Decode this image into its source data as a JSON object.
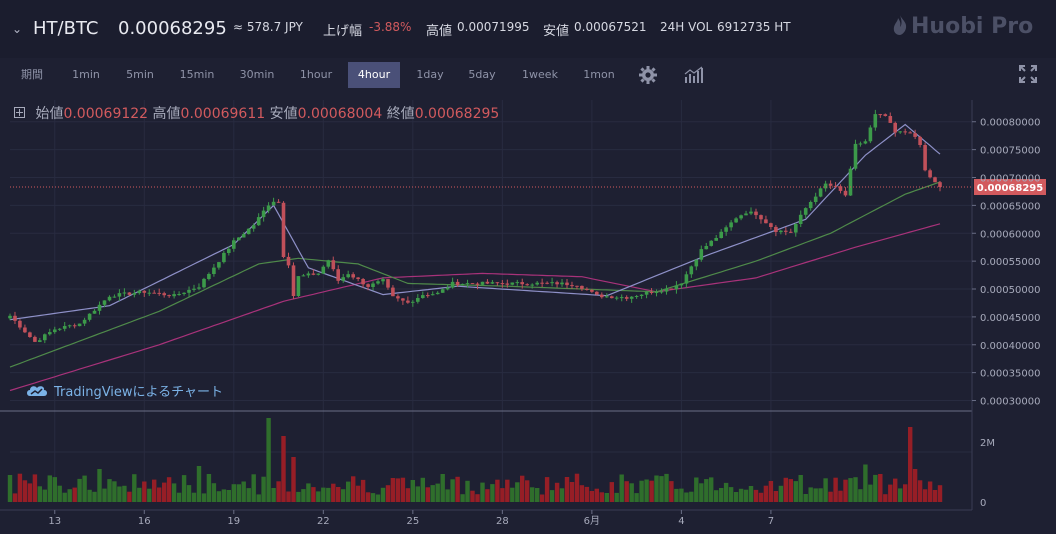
{
  "header": {
    "chevron": "⌄",
    "pair": "HT/BTC",
    "price": "0.00068295",
    "jpy": "≈ 578.7 JPY",
    "change_label": "上げ幅",
    "change_value": "-3.88%",
    "high_label": "高値",
    "high_value": "0.00071995",
    "low_label": "安値",
    "low_value": "0.00067521",
    "vol_label": "24H VOL",
    "vol_value": "6912735 HT",
    "logo": "Huobi Pro"
  },
  "timeframes": {
    "period_label": "期間",
    "items": [
      "1min",
      "5min",
      "15min",
      "30min",
      "1hour",
      "4hour",
      "1day",
      "5day",
      "1week",
      "1mon"
    ],
    "active": "4hour",
    "settings_icon": "gear-icon",
    "indicators_icon": "bar-chart-icon",
    "fullscreen_icon": "expand-icon"
  },
  "ohlc": {
    "open_label": "始値",
    "open": "0.00069122",
    "high_label": "高値",
    "high": "0.00069611",
    "low_label": "安値",
    "low": "0.00068004",
    "close_label": "終値",
    "close": "0.00068295"
  },
  "watermark": "TradingViewによるチャート",
  "colors": {
    "background": "#1e2032",
    "up": "#3c9a4a",
    "down": "#c0505a",
    "ma_short": "#8e90c8",
    "ma_mid": "#4f8a4a",
    "ma_long": "#a8327a",
    "price_line": "#d25a5e",
    "vol_up": "#2f6e2c",
    "vol_down": "#961e26"
  },
  "chart_data": {
    "type": "candlestick",
    "x_tick_labels": [
      "13",
      "16",
      "19",
      "22",
      "25",
      "28",
      "6月",
      "4",
      "7"
    ],
    "y_tick_labels": [
      "0.00080000",
      "0.00075000",
      "0.00070000",
      "0.00065000",
      "0.00060000",
      "0.00055000",
      "0.00050000",
      "0.00045000",
      "0.00040000",
      "0.00035000",
      "0.00030000"
    ],
    "y_ticks": [
      0.0008,
      0.00075,
      0.0007,
      0.00065,
      0.0006,
      0.00055,
      0.0005,
      0.00045,
      0.0004,
      0.00035,
      0.0003
    ],
    "ylim": [
      0.000283,
      0.000839
    ],
    "last_price_label": "0.00068295",
    "last_price": 0.00068295,
    "volume_tick_labels": [
      "2M",
      "0"
    ],
    "volume_ylim": [
      0,
      3000000
    ],
    "close_keypoints": [
      [
        0,
        0.000452
      ],
      [
        5,
        0.000405
      ],
      [
        9,
        0.000428
      ],
      [
        14,
        0.000438
      ],
      [
        20,
        0.000488
      ],
      [
        27,
        0.000495
      ],
      [
        33,
        0.000488
      ],
      [
        38,
        0.000505
      ],
      [
        45,
        0.000585
      ],
      [
        49,
        0.000615
      ],
      [
        52,
        0.000652
      ],
      [
        53,
        0.000658
      ],
      [
        54,
        0.000655
      ],
      [
        55,
        0.00056
      ],
      [
        56,
        0.000545
      ],
      [
        57,
        0.000488
      ],
      [
        58,
        0.000522
      ],
      [
        62,
        0.000528
      ],
      [
        64,
        0.000552
      ],
      [
        66,
        0.000515
      ],
      [
        68,
        0.000528
      ],
      [
        72,
        0.000505
      ],
      [
        75,
        0.000515
      ],
      [
        77,
        0.000485
      ],
      [
        80,
        0.000475
      ],
      [
        83,
        0.00049
      ],
      [
        86,
        0.000492
      ],
      [
        89,
        0.00051
      ],
      [
        95,
        0.00051
      ],
      [
        110,
        0.00051
      ],
      [
        114,
        0.000508
      ],
      [
        118,
        0.000488
      ],
      [
        124,
        0.000485
      ],
      [
        129,
        0.000495
      ],
      [
        133,
        0.000502
      ],
      [
        135,
        0.000512
      ],
      [
        139,
        0.00057
      ],
      [
        143,
        0.0006
      ],
      [
        146,
        0.000628
      ],
      [
        148,
        0.000638
      ],
      [
        150,
        0.000635
      ],
      [
        154,
        0.000605
      ],
      [
        157,
        0.000602
      ],
      [
        160,
        0.000645
      ],
      [
        162,
        0.000668
      ],
      [
        164,
        0.000688
      ],
      [
        166,
        0.000682
      ],
      [
        168,
        0.000668
      ],
      [
        170,
        0.000758
      ],
      [
        172,
        0.000765
      ],
      [
        174,
        0.000812
      ],
      [
        176,
        0.00081
      ],
      [
        178,
        0.00078
      ],
      [
        181,
        0.000782
      ],
      [
        183,
        0.000758
      ],
      [
        184,
        0.000712
      ],
      [
        186,
        0.00069
      ],
      [
        187,
        0.000683
      ]
    ],
    "ma_short_keypoints": [
      [
        0,
        0.000445
      ],
      [
        20,
        0.00047
      ],
      [
        45,
        0.00058
      ],
      [
        53,
        0.00065
      ],
      [
        60,
        0.000538
      ],
      [
        75,
        0.00049
      ],
      [
        90,
        0.000505
      ],
      [
        120,
        0.000488
      ],
      [
        140,
        0.00056
      ],
      [
        160,
        0.000625
      ],
      [
        172,
        0.00074
      ],
      [
        180,
        0.000795
      ],
      [
        187,
        0.000742
      ]
    ],
    "ma_mid_keypoints": [
      [
        0,
        0.00036
      ],
      [
        30,
        0.00046
      ],
      [
        50,
        0.000545
      ],
      [
        58,
        0.000555
      ],
      [
        70,
        0.000545
      ],
      [
        80,
        0.00051
      ],
      [
        100,
        0.000505
      ],
      [
        130,
        0.000495
      ],
      [
        150,
        0.00055
      ],
      [
        165,
        0.0006
      ],
      [
        180,
        0.00067
      ],
      [
        187,
        0.000692
      ]
    ],
    "ma_long_keypoints": [
      [
        0,
        0.000318
      ],
      [
        30,
        0.0004
      ],
      [
        55,
        0.000478
      ],
      [
        75,
        0.00052
      ],
      [
        95,
        0.000528
      ],
      [
        115,
        0.000522
      ],
      [
        130,
        0.000495
      ],
      [
        150,
        0.00052
      ],
      [
        170,
        0.000575
      ],
      [
        187,
        0.000617
      ]
    ],
    "volume_spikes": {
      "52": 2800000,
      "55": 2200000,
      "57": 1500000,
      "38": 1200000,
      "18": 1100000,
      "181": 2500000,
      "182": 1100000,
      "172": 1250000,
      "0": 900000
    },
    "candle_count": 188
  }
}
